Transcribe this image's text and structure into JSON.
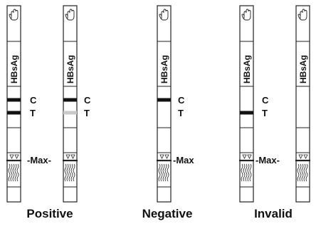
{
  "strip_label": "HBsAg",
  "control_label": "C",
  "test_label": "T",
  "max_label": "Max",
  "captions": [
    "Positive",
    "Negative",
    "Invalid"
  ],
  "strips": [
    {
      "group": "positive",
      "control_line": "strong",
      "test_line": "strong"
    },
    {
      "group": "positive",
      "control_line": "strong",
      "test_line": "faint"
    },
    {
      "group": "negative",
      "control_line": "strong",
      "test_line": "none"
    },
    {
      "group": "invalid",
      "control_line": "none",
      "test_line": "strong"
    },
    {
      "group": "invalid",
      "control_line": "none",
      "test_line": "none"
    }
  ],
  "colors": {
    "line_strong": "#111111",
    "line_faint": "#c8c8c8",
    "outline": "#222222"
  },
  "icons": {
    "grip": "hand-icon",
    "sample_pad": "wave-icon",
    "arrows": "down-triangle-icon"
  }
}
